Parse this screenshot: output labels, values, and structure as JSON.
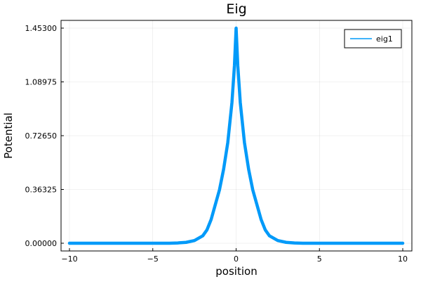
{
  "chart_data": {
    "type": "line",
    "title": "Eig",
    "xlabel": "position",
    "ylabel": "Potential",
    "xlim": [
      -10,
      10
    ],
    "ylim": [
      0.0,
      1.453
    ],
    "x_ticks": [
      -10,
      -5,
      0,
      5,
      10
    ],
    "x_tick_labels": [
      "−10",
      "−5",
      "0",
      "5",
      "10"
    ],
    "y_ticks": [
      0.0,
      0.36325,
      0.7265,
      1.08975,
      1.453
    ],
    "y_tick_labels": [
      "0.00000",
      "0.36325",
      "0.72650",
      "1.08975",
      "1.45300"
    ],
    "grid": true,
    "legend_position": "top-right",
    "series": [
      {
        "name": "eig1",
        "color": "#009af9",
        "x": [
          -10,
          -9,
          -8,
          -7,
          -6,
          -5,
          -4,
          -3.5,
          -3,
          -2.5,
          -2,
          -1.75,
          -1.5,
          -1.25,
          -1,
          -0.75,
          -0.5,
          -0.25,
          -0.1,
          0,
          0.1,
          0.25,
          0.5,
          0.75,
          1,
          1.25,
          1.5,
          1.75,
          2,
          2.5,
          3,
          3.5,
          4,
          5,
          6,
          7,
          8,
          9,
          10
        ],
        "y": [
          0,
          0,
          0,
          0,
          0,
          0,
          0,
          0.002,
          0.006,
          0.018,
          0.05,
          0.09,
          0.16,
          0.26,
          0.36,
          0.5,
          0.68,
          0.95,
          1.2,
          1.453,
          1.2,
          0.95,
          0.68,
          0.5,
          0.36,
          0.26,
          0.16,
          0.09,
          0.05,
          0.018,
          0.006,
          0.002,
          0,
          0,
          0,
          0,
          0,
          0,
          0
        ]
      }
    ]
  }
}
